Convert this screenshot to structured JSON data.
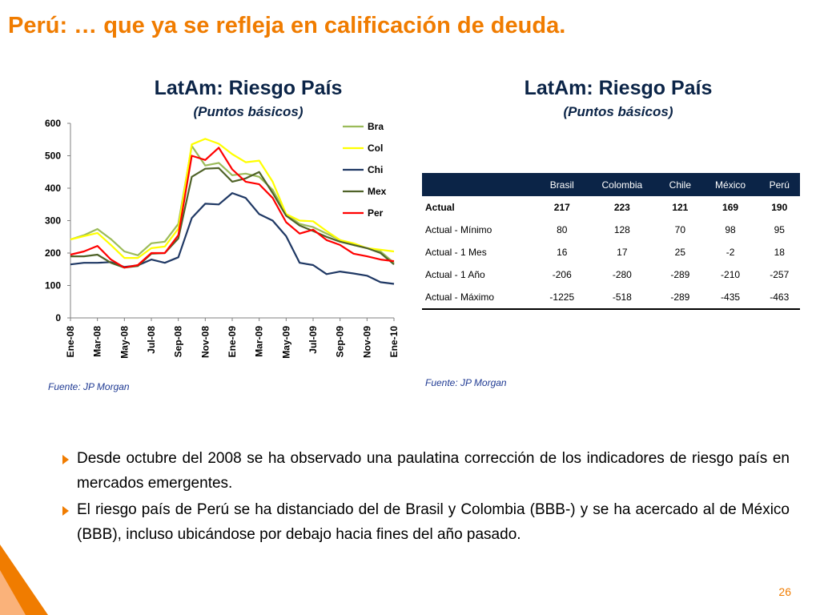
{
  "slide": {
    "title": "Perú: … que ya se refleja en calificación de deuda.",
    "page_number": "26",
    "accent": "#f07c00"
  },
  "left_panel": {
    "title": "LatAm: Riesgo País",
    "subtitle": "(Puntos básicos)",
    "source": "Fuente: JP Morgan"
  },
  "right_panel": {
    "title": "LatAm: Riesgo País",
    "subtitle": "(Puntos básicos)",
    "source": "Fuente: JP Morgan",
    "table": {
      "headers": [
        "",
        "Brasil",
        "Colombia",
        "Chile",
        "México",
        "Perú"
      ],
      "rows": [
        {
          "label": "Actual",
          "values": [
            "217",
            "223",
            "121",
            "169",
            "190"
          ]
        },
        {
          "label": "Actual - Mínimo",
          "values": [
            "80",
            "128",
            "70",
            "98",
            "95"
          ]
        },
        {
          "label": "Actual - 1 Mes",
          "values": [
            "16",
            "17",
            "25",
            "-2",
            "18"
          ]
        },
        {
          "label": "Actual - 1 Año",
          "values": [
            "-206",
            "-280",
            "-289",
            "-210",
            "-257"
          ]
        },
        {
          "label": "Actual - Máximo",
          "values": [
            "-1225",
            "-518",
            "-289",
            "-435",
            "-463"
          ]
        }
      ]
    }
  },
  "bullets": [
    "Desde octubre del 2008 se ha observado una paulatina corrección de los indicadores de riesgo país en mercados emergentes.",
    "El riesgo país de Perú se ha distanciado del de Brasil y Colombia (BBB-) y se ha acercado al de México (BBB), incluso ubicándose por debajo hacia fines del año pasado."
  ],
  "chart_data": {
    "type": "line",
    "x_tick_labels": [
      "Ene-08",
      "Mar-08",
      "May-08",
      "Jul-08",
      "Sep-08",
      "Nov-08",
      "Ene-09",
      "Mar-09",
      "May-09",
      "Jul-09",
      "Sep-09",
      "Nov-09",
      "Ene-10"
    ],
    "ylim": [
      0,
      600
    ],
    "yticks": [
      0,
      100,
      200,
      300,
      400,
      500,
      600
    ],
    "legend_position": "top-right",
    "grid": false,
    "series": [
      {
        "name": "Bra",
        "color": "#9bbb59",
        "values": [
          242,
          255,
          274,
          243,
          205,
          193,
          230,
          235,
          290,
          530,
          470,
          478,
          440,
          445,
          435,
          395,
          320,
          290,
          280,
          260,
          240,
          225,
          215,
          205,
          170
        ]
      },
      {
        "name": "Col",
        "color": "#ffff00",
        "values": [
          242,
          252,
          262,
          225,
          185,
          185,
          215,
          220,
          275,
          535,
          552,
          537,
          505,
          480,
          485,
          420,
          320,
          300,
          298,
          268,
          240,
          230,
          215,
          210,
          205
        ]
      },
      {
        "name": "Chi",
        "color": "#1f3864",
        "values": [
          165,
          170,
          170,
          172,
          157,
          162,
          180,
          170,
          187,
          308,
          352,
          350,
          385,
          370,
          320,
          300,
          252,
          170,
          163,
          135,
          143,
          137,
          130,
          110,
          105
        ]
      },
      {
        "name": "Mex",
        "color": "#4f6228",
        "values": [
          190,
          190,
          195,
          170,
          155,
          160,
          198,
          200,
          245,
          435,
          460,
          462,
          420,
          430,
          450,
          385,
          315,
          285,
          268,
          250,
          235,
          225,
          215,
          200,
          165
        ]
      },
      {
        "name": "Per",
        "color": "#ff0000",
        "values": [
          195,
          205,
          222,
          180,
          155,
          163,
          200,
          200,
          255,
          500,
          487,
          525,
          458,
          420,
          412,
          370,
          295,
          260,
          272,
          240,
          225,
          198,
          190,
          180,
          175
        ]
      }
    ]
  }
}
